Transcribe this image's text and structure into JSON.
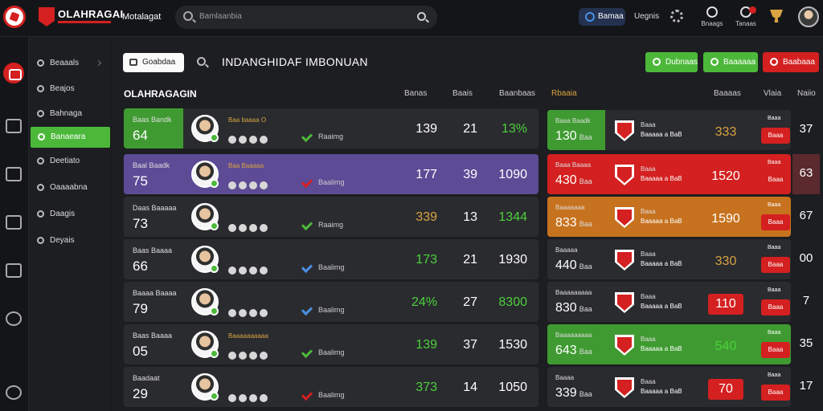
{
  "topbar": {
    "brand": "OLAHRAGAI",
    "nav_label": "Motalagat",
    "search_placeholder": "Bamlaanbia",
    "pill_label": "Bamaa",
    "link_label": "Uegnis",
    "icon_labels": [
      "Bnaags",
      "Tanaas"
    ]
  },
  "sidebar": {
    "items": [
      {
        "label": "Beaaals",
        "icon": "circle-icon"
      },
      {
        "label": "Beajos",
        "icon": "shield-icon"
      },
      {
        "label": "Bahnaga",
        "icon": "shield-icon"
      },
      {
        "label": "Banaeara",
        "icon": "check-icon",
        "active": true
      },
      {
        "label": "Deetiato",
        "icon": "circle-icon"
      },
      {
        "label": "Oaaaabna",
        "icon": "shield-icon"
      },
      {
        "label": "Daagis",
        "icon": "circle-icon"
      },
      {
        "label": "Deyais",
        "icon": "shield-icon"
      }
    ]
  },
  "toolbar": {
    "filter_label": "Goabdaa",
    "page_title": "INDANGHIDAF IMBONUAN",
    "actions": [
      {
        "label": "Dubnaas",
        "color": "green"
      },
      {
        "label": "Baaaaaa",
        "color": "green"
      },
      {
        "label": "Baabaaa",
        "color": "red"
      }
    ]
  },
  "left_table": {
    "title": "OLAHRAGAGIN",
    "columns": [
      "Banas",
      "Baais",
      "Baanbaas"
    ],
    "rows": [
      {
        "name": "Baas Bandk",
        "num": "64",
        "tag": "Baa baaaa O",
        "mark": "Raaimg",
        "v1": "139",
        "v1_color": "#ffffff",
        "v2": "21",
        "v3": "13%",
        "v3_color": "#4cd13a",
        "accent": "#3f9b31",
        "mark_color": "green",
        "bg": "#2a2b2f"
      },
      {
        "name": "Baal Baadk",
        "num": "75",
        "tag": "Baa Baaaaa",
        "mark": "Baalimg",
        "v1": "177",
        "v1_color": "#ffffff",
        "v2": "39",
        "v3": "1090",
        "v3_color": "#ffffff",
        "accent": "#5d4b96",
        "mark_color": "red",
        "bg": "#5d4b96"
      },
      {
        "name": "Daas Baaaaa",
        "num": "73",
        "tag": "",
        "mark": "Raaimg",
        "v1": "339",
        "v1_color": "#d9a441",
        "v2": "13",
        "v3": "1344",
        "v3_color": "#4cd13a",
        "accent": "#2a2b2f",
        "mark_color": "green",
        "bg": "#2a2b2f"
      },
      {
        "name": "Baas Baaaa",
        "num": "66",
        "tag": "",
        "mark": "Baalimg",
        "v1": "173",
        "v1_color": "#4cd13a",
        "v2": "21",
        "v3": "1930",
        "v3_color": "#ffffff",
        "accent": "#2a2b2f",
        "mark_color": "blue",
        "bg": "#2a2b2f"
      },
      {
        "name": "Baaaa Baaaa",
        "num": "79",
        "tag": "",
        "mark": "Baalimg",
        "v1": "24%",
        "v1_color": "#4cd13a",
        "v2": "27",
        "v3": "8300",
        "v3_color": "#4cd13a",
        "accent": "#2a2b2f",
        "mark_color": "blue",
        "bg": "#2a2b2f"
      },
      {
        "name": "Baas Baaaa",
        "num": "05",
        "tag": "Baaaaaaaaaa",
        "mark": "Baalimg",
        "v1": "139",
        "v1_color": "#4cd13a",
        "v2": "37",
        "v3": "1530",
        "v3_color": "#ffffff",
        "accent": "#2a2b2f",
        "mark_color": "green",
        "bg": "#2a2b2f"
      },
      {
        "name": "Baadaat",
        "num": "29",
        "tag": "",
        "mark": "Baalimg",
        "v1": "373",
        "v1_color": "#4cd13a",
        "v2": "14",
        "v3": "1050",
        "v3_color": "#ffffff",
        "accent": "#2a2b2f",
        "mark_color": "red",
        "bg": "#2a2b2f"
      }
    ]
  },
  "right_table": {
    "title": "Rbaaia",
    "columns": [
      "Baaaas",
      "Vlaia",
      "Naiio"
    ],
    "rows": [
      {
        "name": "Baaa Baadk",
        "num": "130",
        "suffix": "Baa",
        "team": "Baaa",
        "team2": "Baaaaa a BaB",
        "score": "333",
        "score_color": "#d9a441",
        "score_bg": "transparent",
        "pill": "Baaa",
        "pill_head": "Baaa",
        "side": "37",
        "bar": "#3f9b31",
        "bg": "#2a2b2f",
        "side_bg": "transparent"
      },
      {
        "name": "Baaa Baaaa",
        "num": "430",
        "suffix": "Baa",
        "team": "Baaa",
        "team2": "Baaaaa a BaB",
        "score": "1520",
        "score_color": "#ffffff",
        "score_bg": "transparent",
        "pill": "Baaa",
        "pill_head": "Baaa",
        "side": "63",
        "bar": "#d42020",
        "bg": "#d42020",
        "side_bg": "#5a2a2e"
      },
      {
        "name": "Baaaaaaa",
        "num": "833",
        "suffix": "Baa",
        "team": "Baaa",
        "team2": "Baaaaa a BaB",
        "score": "1590",
        "score_color": "#ffffff",
        "score_bg": "transparent",
        "pill": "Baaa",
        "pill_head": "Baaa",
        "side": "67",
        "bar": "#c7721e",
        "bg": "#c7721e",
        "side_bg": "transparent"
      },
      {
        "name": "Baaaaa",
        "num": "440",
        "suffix": "Baa",
        "team": "Baaa",
        "team2": "Baaaaa a BaB",
        "score": "330",
        "score_color": "#d9a441",
        "score_bg": "transparent",
        "pill": "Baaa",
        "pill_head": "Baaa",
        "side": "00",
        "bar": "#2a2b2f",
        "bg": "#2a2b2f",
        "side_bg": "transparent"
      },
      {
        "name": "Baaaaaaaaa",
        "num": "830",
        "suffix": "Baa",
        "team": "Baaa",
        "team2": "Baaaaa a BaB",
        "score": "110",
        "score_color": "#ffffff",
        "score_bg": "#d42020",
        "pill": "Baaa",
        "pill_head": "Baaa",
        "side": "7",
        "bar": "#2a2b2f",
        "bg": "#2a2b2f",
        "side_bg": "transparent"
      },
      {
        "name": "Baaaaaaaaa",
        "num": "643",
        "suffix": "Baa",
        "team": "Baaa",
        "team2": "Baaaaa a BaB",
        "score": "540",
        "score_color": "#4cd13a",
        "score_bg": "transparent",
        "pill": "Baaa",
        "pill_head": "Baaa",
        "side": "35",
        "bar": "#3f9b31",
        "bg": "#3f9b31",
        "side_bg": "transparent"
      },
      {
        "name": "Baaaa",
        "num": "339",
        "suffix": "Baa",
        "team": "Baaa",
        "team2": "Baaaaa a BaB",
        "score": "70",
        "score_color": "#ffffff",
        "score_bg": "#d42020",
        "pill": "Baaa",
        "pill_head": "Baaa",
        "side": "17",
        "bar": "#2a2b2f",
        "bg": "#2a2b2f",
        "side_bg": "transparent"
      }
    ]
  }
}
